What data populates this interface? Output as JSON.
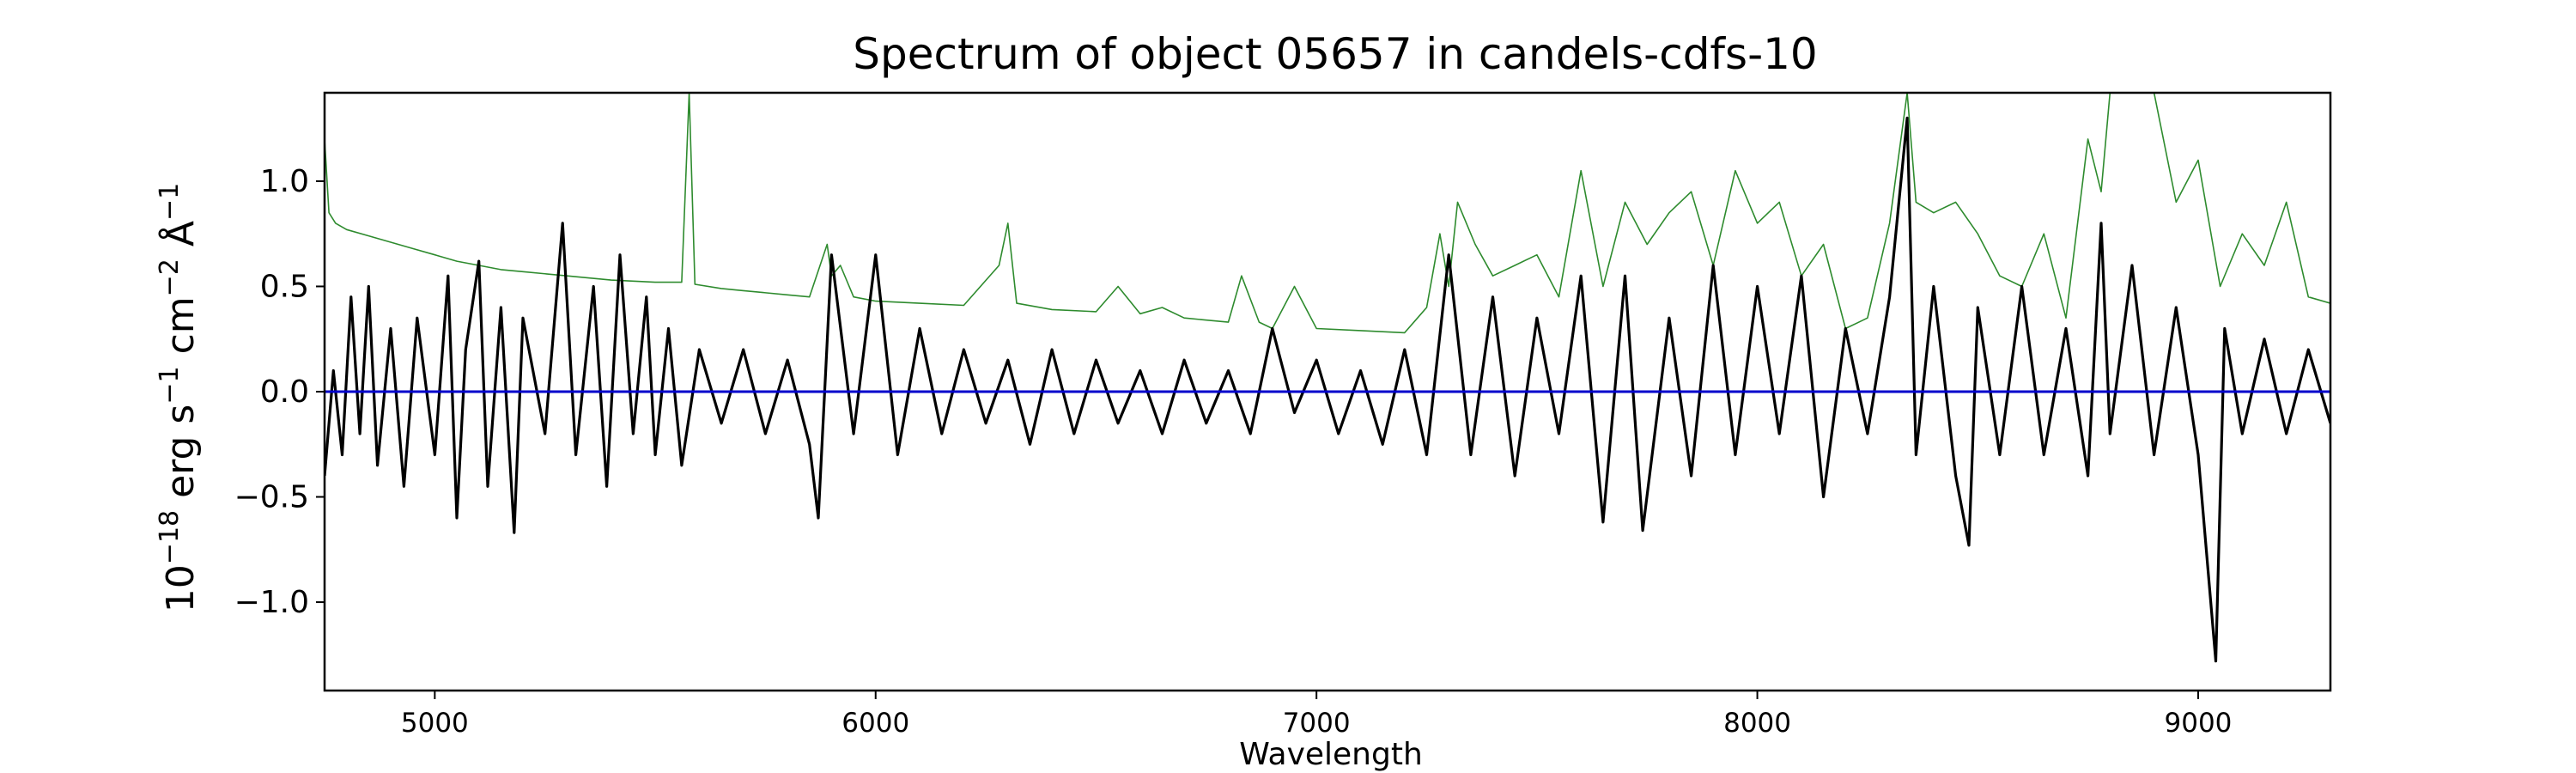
{
  "chart_data": {
    "type": "line",
    "title": "Spectrum of object 05657 in candels-cdfs-10",
    "xlabel": "Wavelength",
    "ylabel": {
      "base": "10",
      "exp1": "−18",
      "unit1": " erg s",
      "exp2": "−1",
      "unit2": " cm",
      "exp3": "−2",
      "unit3": " Å",
      "exp4": "−1"
    },
    "xlim": [
      4750,
      9300
    ],
    "ylim": [
      -1.42,
      1.42
    ],
    "x_ticks": [
      {
        "value": 5000,
        "label": "5000"
      },
      {
        "value": 6000,
        "label": "6000"
      },
      {
        "value": 7000,
        "label": "7000"
      },
      {
        "value": 8000,
        "label": "8000"
      },
      {
        "value": 9000,
        "label": "9000"
      }
    ],
    "y_ticks": [
      {
        "value": 1.0,
        "label": "1.0"
      },
      {
        "value": 0.5,
        "label": "0.5"
      },
      {
        "value": 0.0,
        "label": "0.0"
      },
      {
        "value": -0.5,
        "label": "−0.5"
      },
      {
        "value": -1.0,
        "label": "−1.0"
      }
    ],
    "grid": false,
    "series": [
      {
        "role": "noise",
        "color": "#2e8b2e",
        "x": [
          4750,
          4760,
          4775,
          4800,
          4850,
          4900,
          4950,
          5000,
          5050,
          5100,
          5150,
          5200,
          5300,
          5400,
          5500,
          5560,
          5577,
          5590,
          5650,
          5700,
          5800,
          5850,
          5890,
          5900,
          5920,
          5950,
          6000,
          6100,
          6200,
          6280,
          6300,
          6320,
          6400,
          6500,
          6550,
          6600,
          6650,
          6700,
          6800,
          6830,
          6870,
          6900,
          6950,
          7000,
          7100,
          7200,
          7250,
          7280,
          7300,
          7320,
          7360,
          7400,
          7450,
          7500,
          7550,
          7600,
          7650,
          7700,
          7750,
          7800,
          7850,
          7900,
          7950,
          8000,
          8050,
          8100,
          8150,
          8200,
          8250,
          8300,
          8340,
          8360,
          8400,
          8450,
          8500,
          8550,
          8600,
          8650,
          8700,
          8750,
          8780,
          8800,
          8850,
          8900,
          8950,
          9000,
          9050,
          9100,
          9150,
          9200,
          9250,
          9300
        ],
        "y": [
          1.2,
          0.85,
          0.8,
          0.77,
          0.74,
          0.71,
          0.68,
          0.65,
          0.62,
          0.6,
          0.58,
          0.57,
          0.55,
          0.53,
          0.52,
          0.52,
          1.42,
          0.51,
          0.49,
          0.48,
          0.46,
          0.45,
          0.7,
          0.55,
          0.6,
          0.45,
          0.43,
          0.42,
          0.41,
          0.6,
          0.8,
          0.42,
          0.39,
          0.38,
          0.5,
          0.37,
          0.4,
          0.35,
          0.33,
          0.55,
          0.33,
          0.3,
          0.5,
          0.3,
          0.29,
          0.28,
          0.4,
          0.75,
          0.5,
          0.9,
          0.7,
          0.55,
          0.6,
          0.65,
          0.45,
          1.05,
          0.5,
          0.9,
          0.7,
          0.85,
          0.95,
          0.6,
          1.05,
          0.8,
          0.9,
          0.55,
          0.7,
          0.3,
          0.35,
          0.8,
          1.42,
          0.9,
          0.85,
          0.9,
          0.75,
          0.55,
          0.5,
          0.75,
          0.35,
          1.2,
          0.95,
          1.42,
          1.42,
          1.42,
          0.9,
          1.1,
          0.5,
          0.75,
          0.6,
          0.9,
          0.45,
          0.42
        ]
      },
      {
        "role": "flux",
        "color": "#000000",
        "x": [
          4750,
          4770,
          4790,
          4810,
          4830,
          4850,
          4870,
          4900,
          4930,
          4960,
          5000,
          5030,
          5050,
          5070,
          5100,
          5120,
          5150,
          5180,
          5200,
          5250,
          5290,
          5320,
          5360,
          5390,
          5420,
          5450,
          5480,
          5500,
          5530,
          5560,
          5600,
          5650,
          5700,
          5750,
          5800,
          5850,
          5870,
          5900,
          5950,
          6000,
          6050,
          6100,
          6150,
          6200,
          6250,
          6300,
          6350,
          6400,
          6450,
          6500,
          6550,
          6600,
          6650,
          6700,
          6750,
          6800,
          6850,
          6900,
          6950,
          7000,
          7050,
          7100,
          7150,
          7200,
          7250,
          7300,
          7350,
          7400,
          7450,
          7500,
          7550,
          7600,
          7650,
          7700,
          7740,
          7800,
          7850,
          7900,
          7950,
          8000,
          8050,
          8100,
          8150,
          8200,
          8250,
          8300,
          8340,
          8360,
          8400,
          8450,
          8480,
          8500,
          8550,
          8600,
          8650,
          8700,
          8750,
          8780,
          8800,
          8850,
          8900,
          8950,
          9000,
          9040,
          9060,
          9100,
          9150,
          9200,
          9250,
          9300
        ],
        "y": [
          -0.4,
          0.1,
          -0.3,
          0.45,
          -0.2,
          0.5,
          -0.35,
          0.3,
          -0.45,
          0.35,
          -0.3,
          0.55,
          -0.6,
          0.2,
          0.62,
          -0.45,
          0.4,
          -0.67,
          0.35,
          -0.2,
          0.8,
          -0.3,
          0.5,
          -0.45,
          0.65,
          -0.2,
          0.45,
          -0.3,
          0.3,
          -0.35,
          0.2,
          -0.15,
          0.2,
          -0.2,
          0.15,
          -0.25,
          -0.6,
          0.65,
          -0.2,
          0.65,
          -0.3,
          0.3,
          -0.2,
          0.2,
          -0.15,
          0.15,
          -0.25,
          0.2,
          -0.2,
          0.15,
          -0.15,
          0.1,
          -0.2,
          0.15,
          -0.15,
          0.1,
          -0.2,
          0.3,
          -0.1,
          0.15,
          -0.2,
          0.1,
          -0.25,
          0.2,
          -0.3,
          0.65,
          -0.3,
          0.45,
          -0.4,
          0.35,
          -0.2,
          0.55,
          -0.62,
          0.55,
          -0.66,
          0.35,
          -0.4,
          0.6,
          -0.3,
          0.5,
          -0.2,
          0.55,
          -0.5,
          0.3,
          -0.2,
          0.45,
          1.3,
          -0.3,
          0.5,
          -0.4,
          -0.73,
          0.4,
          -0.3,
          0.5,
          -0.3,
          0.3,
          -0.4,
          0.8,
          -0.2,
          0.6,
          -0.3,
          0.4,
          -0.3,
          -1.28,
          0.3,
          -0.2,
          0.25,
          -0.2,
          0.2,
          -0.15
        ]
      },
      {
        "role": "zero-line",
        "color": "#0000cc",
        "x": [
          4750,
          9300
        ],
        "y": [
          0.0,
          0.0
        ]
      }
    ]
  }
}
